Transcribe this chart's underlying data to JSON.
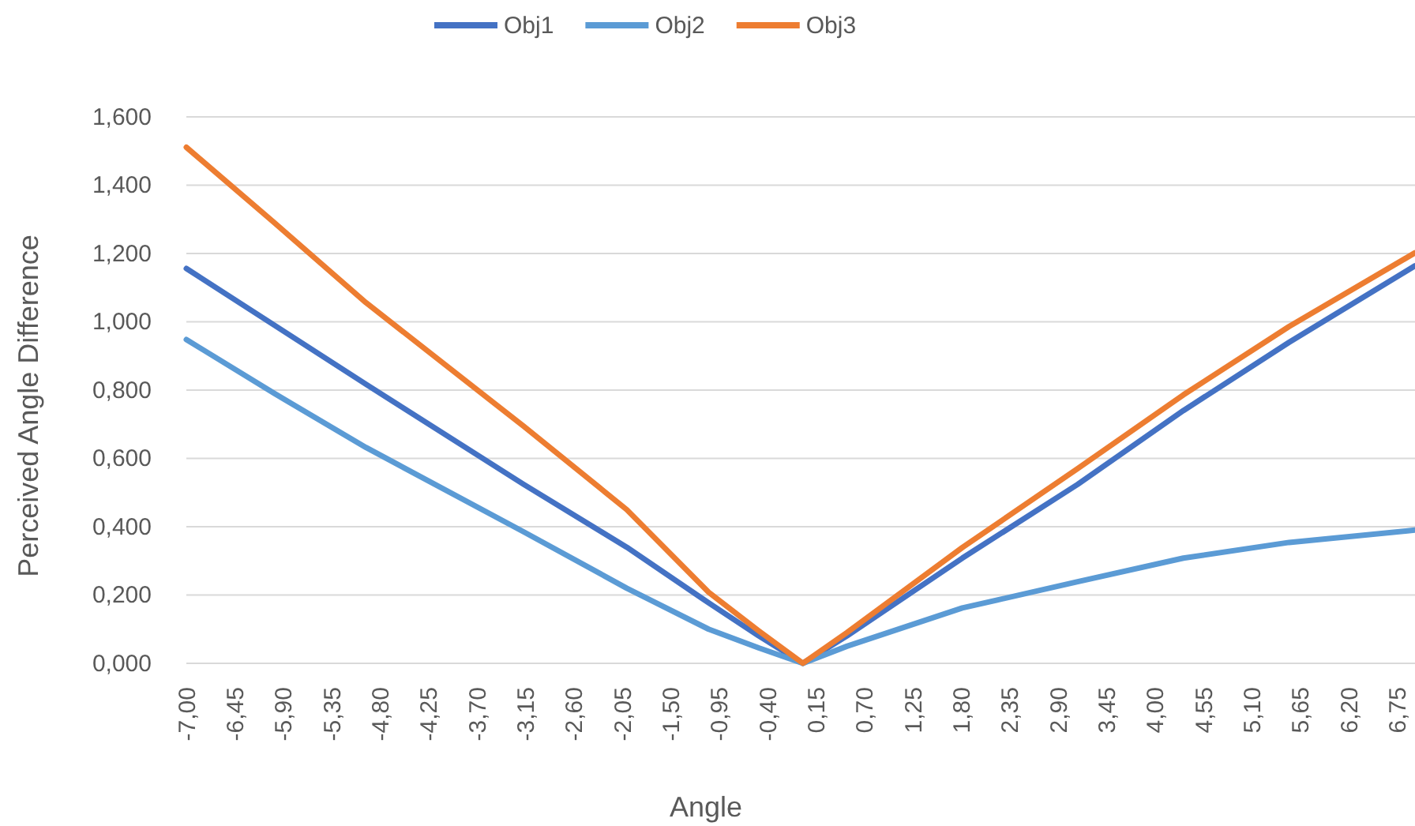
{
  "chart_data": {
    "type": "line",
    "xlabel": "Angle",
    "ylabel": "Perceived Angle Difference",
    "xlim": [
      -7,
      6.95
    ],
    "ylim": [
      0,
      1.6
    ],
    "xticks": [
      {
        "value": -7,
        "label": "-7,00"
      },
      {
        "value": -6.45,
        "label": "-6,45"
      },
      {
        "value": -5.9,
        "label": "-5,90"
      },
      {
        "value": -5.35,
        "label": "-5,35"
      },
      {
        "value": -4.8,
        "label": "-4,80"
      },
      {
        "value": -4.25,
        "label": "-4,25"
      },
      {
        "value": -3.7,
        "label": "-3,70"
      },
      {
        "value": -3.15,
        "label": "-3,15"
      },
      {
        "value": -2.6,
        "label": "-2,60"
      },
      {
        "value": -2.05,
        "label": "-2,05"
      },
      {
        "value": -1.5,
        "label": "-1,50"
      },
      {
        "value": -0.95,
        "label": "-0,95"
      },
      {
        "value": -0.4,
        "label": "-0,40"
      },
      {
        "value": 0.15,
        "label": "0,15"
      },
      {
        "value": 0.7,
        "label": "0,70"
      },
      {
        "value": 1.25,
        "label": "1,25"
      },
      {
        "value": 1.8,
        "label": "1,80"
      },
      {
        "value": 2.35,
        "label": "2,35"
      },
      {
        "value": 2.9,
        "label": "2,90"
      },
      {
        "value": 3.45,
        "label": "3,45"
      },
      {
        "value": 4.0,
        "label": "4,00"
      },
      {
        "value": 4.55,
        "label": "4,55"
      },
      {
        "value": 5.1,
        "label": "5,10"
      },
      {
        "value": 5.65,
        "label": "5,65"
      },
      {
        "value": 6.2,
        "label": "6,20"
      },
      {
        "value": 6.75,
        "label": "6,75"
      }
    ],
    "yticks": [
      {
        "value": 0,
        "label": "0,000"
      },
      {
        "value": 0.2,
        "label": "0,200"
      },
      {
        "value": 0.4,
        "label": "0,400"
      },
      {
        "value": 0.6,
        "label": "0,600"
      },
      {
        "value": 0.8,
        "label": "0,800"
      },
      {
        "value": 1.0,
        "label": "1,000"
      },
      {
        "value": 1.2,
        "label": "1,200"
      },
      {
        "value": 1.4,
        "label": "1,400"
      },
      {
        "value": 1.6,
        "label": "1,600"
      }
    ],
    "x": [
      -7,
      -6,
      -4.96,
      -3.17,
      -2,
      -1.07,
      -0.5,
      0,
      0.5,
      1.81,
      3.12,
      4.32,
      5.52,
      6.95
    ],
    "series": [
      {
        "name": "Obj1",
        "color": "#4472c4",
        "values": [
          1.156,
          0.99,
          0.817,
          0.524,
          0.34,
          0.177,
          0.08,
          0,
          0.08,
          0.308,
          0.524,
          0.74,
          0.94,
          1.164
        ]
      },
      {
        "name": "Obj2",
        "color": "#5b9bd5",
        "values": [
          0.948,
          0.79,
          0.632,
          0.385,
          0.22,
          0.1,
          0.045,
          0,
          0.05,
          0.162,
          0.239,
          0.308,
          0.354,
          0.39
        ]
      },
      {
        "name": "Obj3",
        "color": "#ed7d31",
        "values": [
          1.511,
          1.29,
          1.056,
          0.694,
          0.45,
          0.208,
          0.095,
          0,
          0.09,
          0.339,
          0.57,
          0.786,
          0.986,
          1.202
        ]
      }
    ],
    "grid": "y",
    "legend": "top",
    "marker": "none",
    "line_style": "solid"
  }
}
